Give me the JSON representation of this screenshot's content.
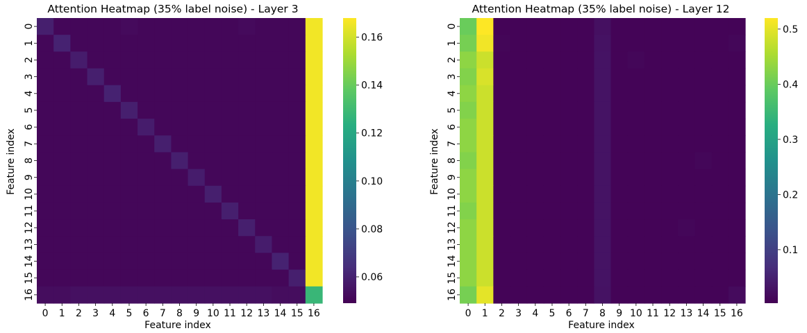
{
  "chart_data": [
    {
      "type": "heatmap",
      "title": "Attention Heatmap (35% label noise) - Layer 3",
      "xlabel": "Feature index",
      "ylabel": "Feature index",
      "x_ticks": [
        "0",
        "1",
        "2",
        "3",
        "4",
        "5",
        "6",
        "7",
        "8",
        "9",
        "10",
        "11",
        "12",
        "13",
        "14",
        "15",
        "16"
      ],
      "y_ticks": [
        "0",
        "1",
        "2",
        "3",
        "4",
        "5",
        "6",
        "7",
        "8",
        "9",
        "10",
        "11",
        "12",
        "13",
        "14",
        "15",
        "16"
      ],
      "colormap": "viridis",
      "vmin": 0.049,
      "vmax": 0.168,
      "colorbar_ticks": [
        0.06,
        0.08,
        0.1,
        0.12,
        0.14,
        0.16
      ],
      "colorbar_tick_labels": [
        "0.06",
        "0.08",
        "0.10",
        "0.12",
        "0.14",
        "0.16"
      ],
      "matrix": [
        [
          0.059,
          0.051,
          0.051,
          0.051,
          0.051,
          0.052,
          0.051,
          0.051,
          0.051,
          0.051,
          0.051,
          0.051,
          0.052,
          0.051,
          0.051,
          0.051,
          0.166
        ],
        [
          0.051,
          0.06,
          0.051,
          0.051,
          0.051,
          0.051,
          0.051,
          0.051,
          0.051,
          0.051,
          0.051,
          0.051,
          0.051,
          0.051,
          0.051,
          0.051,
          0.166
        ],
        [
          0.051,
          0.051,
          0.058,
          0.051,
          0.051,
          0.051,
          0.051,
          0.051,
          0.051,
          0.051,
          0.051,
          0.051,
          0.051,
          0.051,
          0.051,
          0.051,
          0.166
        ],
        [
          0.051,
          0.051,
          0.051,
          0.059,
          0.051,
          0.051,
          0.051,
          0.051,
          0.051,
          0.051,
          0.051,
          0.051,
          0.051,
          0.051,
          0.051,
          0.051,
          0.166
        ],
        [
          0.051,
          0.051,
          0.051,
          0.051,
          0.06,
          0.051,
          0.051,
          0.051,
          0.051,
          0.051,
          0.051,
          0.051,
          0.051,
          0.051,
          0.051,
          0.051,
          0.166
        ],
        [
          0.051,
          0.051,
          0.051,
          0.051,
          0.051,
          0.059,
          0.051,
          0.051,
          0.051,
          0.051,
          0.051,
          0.051,
          0.051,
          0.051,
          0.051,
          0.051,
          0.166
        ],
        [
          0.051,
          0.051,
          0.051,
          0.051,
          0.051,
          0.051,
          0.058,
          0.051,
          0.051,
          0.051,
          0.051,
          0.051,
          0.051,
          0.051,
          0.051,
          0.051,
          0.166
        ],
        [
          0.051,
          0.051,
          0.051,
          0.051,
          0.051,
          0.051,
          0.051,
          0.059,
          0.051,
          0.051,
          0.051,
          0.051,
          0.051,
          0.051,
          0.051,
          0.051,
          0.166
        ],
        [
          0.051,
          0.051,
          0.051,
          0.051,
          0.051,
          0.051,
          0.051,
          0.051,
          0.059,
          0.051,
          0.051,
          0.051,
          0.051,
          0.051,
          0.051,
          0.051,
          0.166
        ],
        [
          0.051,
          0.051,
          0.051,
          0.051,
          0.051,
          0.051,
          0.051,
          0.051,
          0.051,
          0.058,
          0.051,
          0.051,
          0.051,
          0.051,
          0.051,
          0.051,
          0.166
        ],
        [
          0.051,
          0.051,
          0.051,
          0.051,
          0.051,
          0.051,
          0.051,
          0.051,
          0.051,
          0.051,
          0.059,
          0.051,
          0.051,
          0.051,
          0.051,
          0.051,
          0.166
        ],
        [
          0.051,
          0.051,
          0.051,
          0.051,
          0.051,
          0.051,
          0.051,
          0.051,
          0.051,
          0.051,
          0.051,
          0.059,
          0.051,
          0.051,
          0.051,
          0.051,
          0.166
        ],
        [
          0.051,
          0.051,
          0.051,
          0.051,
          0.051,
          0.051,
          0.051,
          0.051,
          0.051,
          0.051,
          0.051,
          0.051,
          0.059,
          0.051,
          0.051,
          0.051,
          0.166
        ],
        [
          0.051,
          0.051,
          0.051,
          0.051,
          0.051,
          0.051,
          0.051,
          0.051,
          0.051,
          0.051,
          0.051,
          0.051,
          0.051,
          0.058,
          0.051,
          0.051,
          0.166
        ],
        [
          0.051,
          0.051,
          0.051,
          0.051,
          0.051,
          0.051,
          0.051,
          0.051,
          0.051,
          0.051,
          0.051,
          0.051,
          0.051,
          0.051,
          0.06,
          0.051,
          0.166
        ],
        [
          0.051,
          0.051,
          0.051,
          0.051,
          0.051,
          0.051,
          0.051,
          0.051,
          0.051,
          0.051,
          0.051,
          0.051,
          0.051,
          0.051,
          0.051,
          0.059,
          0.166
        ],
        [
          0.053,
          0.053,
          0.054,
          0.054,
          0.054,
          0.054,
          0.054,
          0.054,
          0.054,
          0.054,
          0.054,
          0.054,
          0.054,
          0.054,
          0.053,
          0.053,
          0.128
        ]
      ]
    },
    {
      "type": "heatmap",
      "title": "Attention Heatmap (35% label noise) - Layer 12",
      "xlabel": "Feature index",
      "ylabel": "Feature index",
      "x_ticks": [
        "0",
        "1",
        "2",
        "3",
        "4",
        "5",
        "6",
        "7",
        "8",
        "9",
        "10",
        "11",
        "12",
        "13",
        "14",
        "15",
        "16"
      ],
      "y_ticks": [
        "0",
        "1",
        "2",
        "3",
        "4",
        "5",
        "6",
        "7",
        "8",
        "9",
        "10",
        "11",
        "12",
        "13",
        "14",
        "15",
        "16"
      ],
      "colormap": "viridis",
      "vmin": 0.003,
      "vmax": 0.52,
      "colorbar_ticks": [
        0.1,
        0.2,
        0.3,
        0.4,
        0.5
      ],
      "colorbar_tick_labels": [
        "0.1",
        "0.2",
        "0.3",
        "0.4",
        "0.5"
      ],
      "matrix": [
        [
          0.4,
          0.52,
          0.008,
          0.008,
          0.008,
          0.008,
          0.008,
          0.008,
          0.025,
          0.008,
          0.008,
          0.008,
          0.008,
          0.008,
          0.008,
          0.008,
          0.008
        ],
        [
          0.41,
          0.51,
          0.01,
          0.008,
          0.008,
          0.008,
          0.008,
          0.008,
          0.028,
          0.008,
          0.008,
          0.008,
          0.008,
          0.008,
          0.008,
          0.008,
          0.012
        ],
        [
          0.43,
          0.48,
          0.008,
          0.008,
          0.008,
          0.008,
          0.008,
          0.008,
          0.03,
          0.008,
          0.012,
          0.008,
          0.008,
          0.008,
          0.008,
          0.008,
          0.008
        ],
        [
          0.42,
          0.49,
          0.008,
          0.008,
          0.008,
          0.008,
          0.008,
          0.008,
          0.03,
          0.008,
          0.008,
          0.008,
          0.008,
          0.008,
          0.008,
          0.008,
          0.008
        ],
        [
          0.43,
          0.48,
          0.008,
          0.008,
          0.008,
          0.008,
          0.008,
          0.008,
          0.03,
          0.008,
          0.008,
          0.008,
          0.008,
          0.008,
          0.008,
          0.008,
          0.008
        ],
        [
          0.42,
          0.48,
          0.008,
          0.008,
          0.008,
          0.008,
          0.008,
          0.008,
          0.03,
          0.008,
          0.008,
          0.008,
          0.008,
          0.008,
          0.008,
          0.008,
          0.008
        ],
        [
          0.43,
          0.48,
          0.008,
          0.008,
          0.008,
          0.008,
          0.008,
          0.008,
          0.03,
          0.008,
          0.008,
          0.008,
          0.008,
          0.008,
          0.008,
          0.008,
          0.008
        ],
        [
          0.43,
          0.48,
          0.008,
          0.008,
          0.008,
          0.008,
          0.008,
          0.008,
          0.03,
          0.008,
          0.008,
          0.008,
          0.008,
          0.008,
          0.008,
          0.008,
          0.008
        ],
        [
          0.42,
          0.48,
          0.008,
          0.008,
          0.008,
          0.008,
          0.008,
          0.008,
          0.03,
          0.008,
          0.008,
          0.008,
          0.008,
          0.008,
          0.012,
          0.008,
          0.008
        ],
        [
          0.43,
          0.48,
          0.008,
          0.008,
          0.008,
          0.008,
          0.008,
          0.008,
          0.03,
          0.008,
          0.008,
          0.008,
          0.008,
          0.008,
          0.008,
          0.008,
          0.008
        ],
        [
          0.43,
          0.48,
          0.008,
          0.008,
          0.008,
          0.008,
          0.008,
          0.008,
          0.03,
          0.008,
          0.008,
          0.008,
          0.008,
          0.008,
          0.008,
          0.008,
          0.008
        ],
        [
          0.42,
          0.48,
          0.008,
          0.008,
          0.008,
          0.008,
          0.008,
          0.008,
          0.03,
          0.008,
          0.008,
          0.008,
          0.008,
          0.008,
          0.008,
          0.008,
          0.008
        ],
        [
          0.43,
          0.48,
          0.008,
          0.008,
          0.008,
          0.008,
          0.008,
          0.008,
          0.03,
          0.008,
          0.008,
          0.008,
          0.008,
          0.012,
          0.008,
          0.008,
          0.008
        ],
        [
          0.43,
          0.48,
          0.008,
          0.008,
          0.008,
          0.008,
          0.008,
          0.008,
          0.03,
          0.008,
          0.008,
          0.008,
          0.008,
          0.008,
          0.008,
          0.008,
          0.008
        ],
        [
          0.43,
          0.48,
          0.008,
          0.008,
          0.008,
          0.008,
          0.008,
          0.008,
          0.03,
          0.008,
          0.008,
          0.008,
          0.008,
          0.008,
          0.008,
          0.008,
          0.008
        ],
        [
          0.43,
          0.48,
          0.008,
          0.008,
          0.008,
          0.008,
          0.008,
          0.008,
          0.03,
          0.008,
          0.008,
          0.008,
          0.008,
          0.008,
          0.008,
          0.008,
          0.008
        ],
        [
          0.41,
          0.5,
          0.008,
          0.008,
          0.008,
          0.008,
          0.008,
          0.008,
          0.028,
          0.008,
          0.008,
          0.008,
          0.008,
          0.008,
          0.008,
          0.008,
          0.018
        ]
      ]
    }
  ]
}
